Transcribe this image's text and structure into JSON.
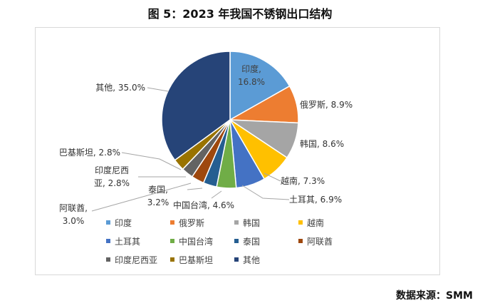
{
  "title": "图 5：2023 年我国不锈钢出口结构",
  "source": "数据来源：SMM",
  "chart_data": {
    "type": "pie",
    "title": "图 5：2023 年我国不锈钢出口结构",
    "unit": "%",
    "slices": [
      {
        "name": "印度",
        "value": 16.8,
        "color": "#5b9bd5",
        "label": "印度,\n16.8%"
      },
      {
        "name": "俄罗斯",
        "value": 8.9,
        "color": "#ed7d31",
        "label": "俄罗斯, 8.9%"
      },
      {
        "name": "韩国",
        "value": 8.6,
        "color": "#a5a5a5",
        "label": "韩国, 8.6%"
      },
      {
        "name": "越南",
        "value": 7.3,
        "color": "#ffc000",
        "label": "越南, 7.3%"
      },
      {
        "name": "土耳其",
        "value": 6.9,
        "color": "#4472c4",
        "label": "土耳其, 6.9%"
      },
      {
        "name": "中国台湾",
        "value": 4.6,
        "color": "#70ad47",
        "label": "中国台湾, 4.6%"
      },
      {
        "name": "泰国",
        "value": 3.2,
        "color": "#255e91",
        "label": "泰国,\n3.2%"
      },
      {
        "name": "阿联酋",
        "value": 3.0,
        "color": "#9e480e",
        "label": "阿联酋,\n3.0%"
      },
      {
        "name": "印度尼西亚",
        "value": 2.8,
        "color": "#636363",
        "label": "印度尼西\n亚, 2.8%"
      },
      {
        "name": "巴基斯坦",
        "value": 2.8,
        "color": "#997300",
        "label": "巴基斯坦, 2.8%"
      },
      {
        "name": "其他",
        "value": 35.0,
        "color": "#264478",
        "label": "其他, 35.0%"
      }
    ],
    "legend": {
      "position": "bottom",
      "columns": 4
    }
  }
}
